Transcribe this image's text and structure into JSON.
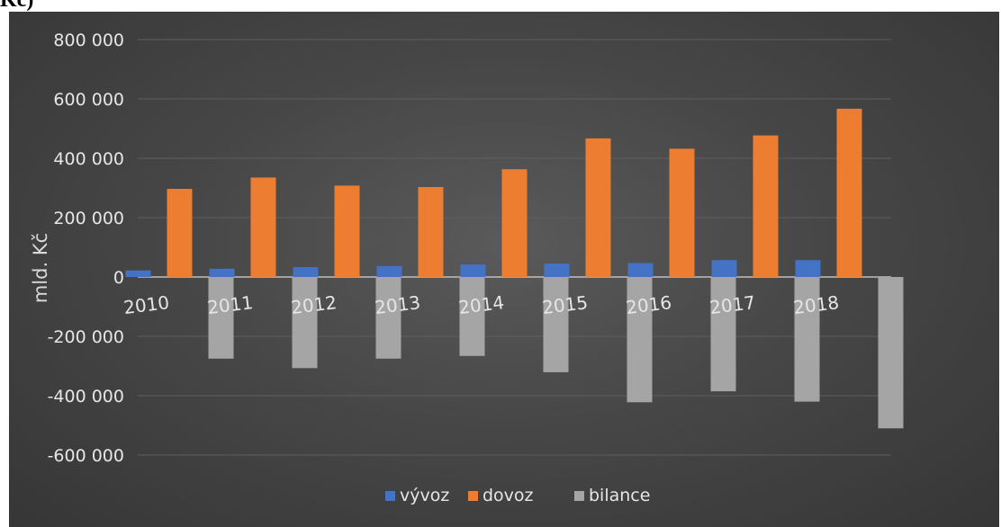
{
  "title_fragment": "Kč)",
  "chart_data": {
    "type": "bar",
    "ylabel": "mld. Kč",
    "ylim": [
      -600000,
      800000
    ],
    "y_ticks": [
      800000,
      600000,
      400000,
      200000,
      0,
      -200000,
      -400000,
      -600000
    ],
    "y_tick_labels": [
      "800 000",
      "600 000",
      "400 000",
      "200 000",
      "0",
      "-200 000",
      "-400 000",
      "-600 000"
    ],
    "categories": [
      "2010",
      "2011",
      "2012",
      "2013",
      "2014",
      "2015",
      "2016",
      "2017",
      "2018"
    ],
    "series": [
      {
        "name": "vývoz",
        "color": "#4472c4",
        "values": [
          22000,
          28000,
          33000,
          37000,
          42000,
          45000,
          47000,
          57000,
          57000
        ]
      },
      {
        "name": "dovoz",
        "color": "#ed7d31",
        "values": [
          297000,
          335000,
          308000,
          303000,
          363000,
          467000,
          432000,
          477000,
          567000
        ]
      },
      {
        "name": "bilance",
        "color": "#a5a5a5",
        "values": [
          -275000,
          -307000,
          -275000,
          -266000,
          -321000,
          -422000,
          -385000,
          -420000,
          -510000
        ]
      }
    ],
    "grid": true,
    "legend_position": "bottom"
  }
}
